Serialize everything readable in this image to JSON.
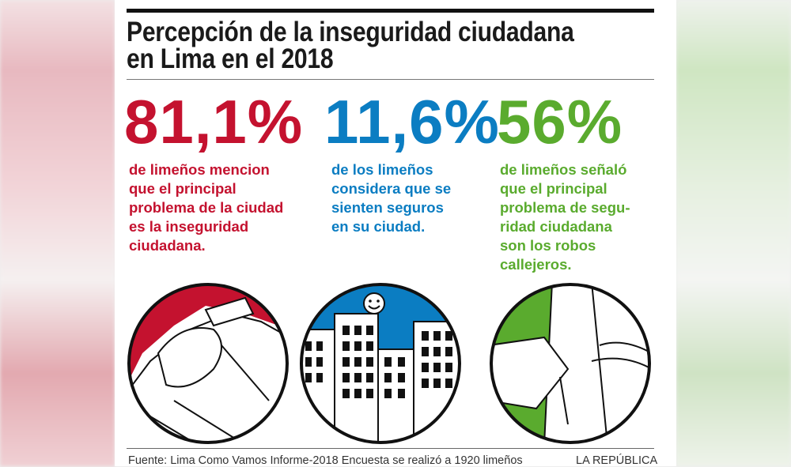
{
  "title_line1": "Percepción de la inseguridad ciudadana",
  "title_line2": "en Lima en el 2018",
  "colors": {
    "red": "#c4122f",
    "blue": "#0b7dc2",
    "green": "#5aab2e"
  },
  "stats": [
    {
      "value": "81,1%",
      "lines": [
        "de limeños mencion",
        "que el principal",
        "problema de la ciudad",
        "es la inseguridad",
        "ciudadana."
      ],
      "icon": "victim-illustration-icon"
    },
    {
      "value": "11,6%",
      "lines": [
        "de los limeños",
        "considera que se",
        "sienten seguros",
        "en su ciudad."
      ],
      "icon": "city-smiley-illustration-icon"
    },
    {
      "value": "56%",
      "lines": [
        "de limeños señaló",
        "que el principal",
        "problema de segu-",
        "ridad ciudadana",
        "son los robos",
        "callejeros."
      ],
      "icon": "street-robbery-illustration-icon"
    }
  ],
  "footer": {
    "source": "Fuente: Lima Como Vamos Informe-2018 Encuesta se realizó a 1920 limeños",
    "brand": "LA REPÚBLICA"
  }
}
